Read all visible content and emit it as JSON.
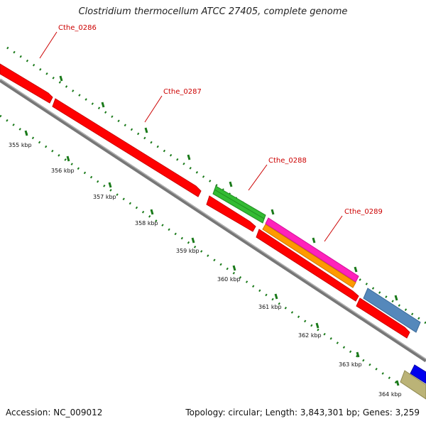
{
  "title": "Clostridium thermocellum ATCC 27405, complete genome",
  "accession": "Accession: NC_009012",
  "topology": "Topology: circular; Length: 3,843,301 bp; Genes: 3,259",
  "gene_labels": [
    "Cthe_0286",
    "Cthe_0287",
    "Cthe_0288",
    "Cthe_0289"
  ],
  "tick_labels": [
    "355 kbp",
    "356 kbp",
    "357 kbp",
    "358 kbp",
    "359 kbp",
    "360 kbp",
    "361 kbp",
    "362 kbp",
    "363 kbp",
    "364 kbp"
  ],
  "colors": {
    "cds_forward": "#ff0000",
    "backbone": "#888888",
    "tick_marks": "#1a7a1a",
    "label_text": "#cc0000",
    "feature_green": "#33bb33",
    "feature_magenta": "#ff22bb",
    "feature_orange": "#ff9900",
    "feature_steelblue": "#5588bb",
    "feature_blue": "#0000ee",
    "feature_khaki": "#bbb377"
  }
}
